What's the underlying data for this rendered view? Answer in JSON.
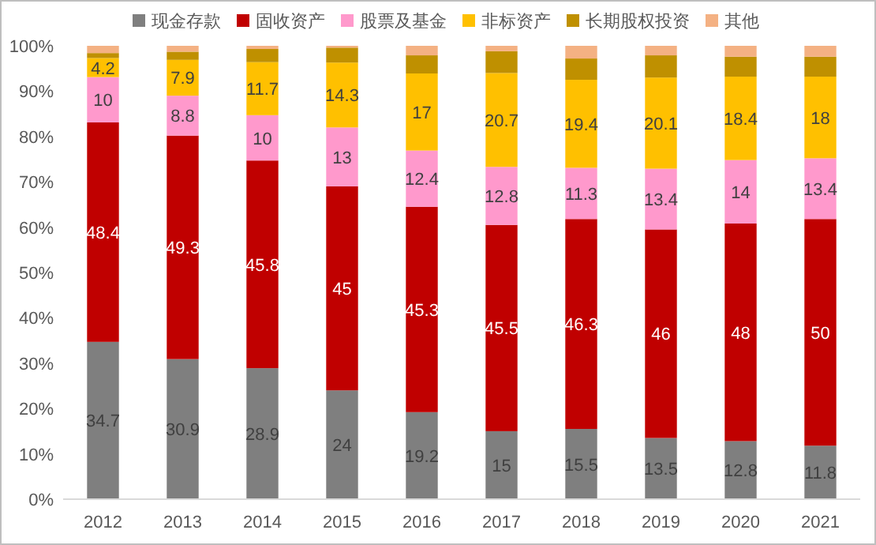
{
  "chart_data": {
    "type": "bar",
    "stacked": true,
    "categories": [
      "2012",
      "2013",
      "2014",
      "2015",
      "2016",
      "2017",
      "2018",
      "2019",
      "2020",
      "2021"
    ],
    "ylim": [
      0,
      100
    ],
    "yticks": [
      {
        "value": 0,
        "label": "0%"
      },
      {
        "value": 10,
        "label": "10%"
      },
      {
        "value": 20,
        "label": "20%"
      },
      {
        "value": 30,
        "label": "30%"
      },
      {
        "value": 40,
        "label": "40%"
      },
      {
        "value": 50,
        "label": "50%"
      },
      {
        "value": 60,
        "label": "60%"
      },
      {
        "value": 70,
        "label": "70%"
      },
      {
        "value": 80,
        "label": "80%"
      },
      {
        "value": 90,
        "label": "90%"
      },
      {
        "value": 100,
        "label": "100%"
      }
    ],
    "grid": false,
    "legend": "top",
    "series": [
      {
        "name": "现金存款",
        "color": "#7f7f7f",
        "values": [
          34.7,
          30.9,
          28.9,
          24,
          19.2,
          15,
          15.5,
          13.5,
          12.8,
          11.8
        ],
        "value_labels": [
          "34.7",
          "30.9",
          "28.9",
          "24",
          "19.2",
          "15",
          "15.5",
          "13.5",
          "12.8",
          "11.8"
        ]
      },
      {
        "name": "固收资产",
        "color": "#c00000",
        "values": [
          48.4,
          49.3,
          45.8,
          45,
          45.3,
          45.5,
          46.3,
          46,
          48,
          50
        ],
        "value_labels": [
          "48.4",
          "49.3",
          "45.8",
          "45",
          "45.3",
          "45.5",
          "46.3",
          "46",
          "48",
          "50"
        ]
      },
      {
        "name": "股票及基金",
        "color": "#ff99cc",
        "values": [
          10,
          8.8,
          10,
          13,
          12.4,
          12.8,
          11.3,
          13.4,
          14,
          13.4
        ],
        "value_labels": [
          "10",
          "8.8",
          "10",
          "13",
          "12.4",
          "12.8",
          "11.3",
          "13.4",
          "14",
          "13.4"
        ]
      },
      {
        "name": "非标资产",
        "color": "#ffc000",
        "values": [
          4.2,
          7.9,
          11.7,
          14.3,
          17,
          20.7,
          19.4,
          20.1,
          18.4,
          18
        ],
        "value_labels": [
          "4.2",
          "7.9",
          "11.7",
          "14.3",
          "17",
          "20.7",
          "19.4",
          "20.1",
          "18.4",
          "18"
        ]
      },
      {
        "name": "长期股权投资",
        "color": "#bf9000",
        "values": [
          1.1,
          1.8,
          2.9,
          3.3,
          4.0,
          4.8,
          4.7,
          4.9,
          4.4,
          4.4
        ]
      },
      {
        "name": "其他",
        "color": "#f4b183",
        "values": [
          1.6,
          1.3,
          0.7,
          0.4,
          2.1,
          1.2,
          2.8,
          2.1,
          2.4,
          2.4
        ]
      }
    ]
  }
}
